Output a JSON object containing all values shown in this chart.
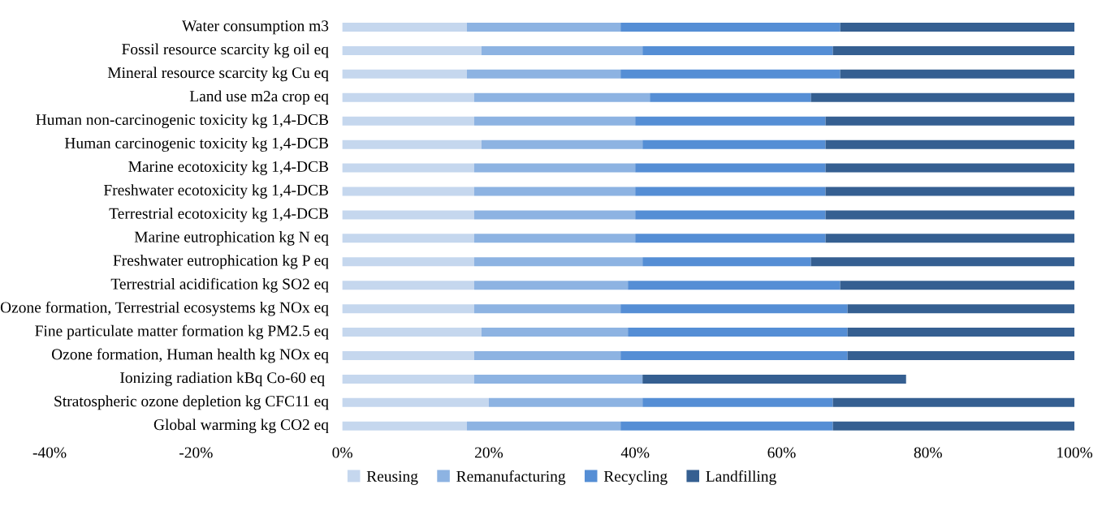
{
  "chart_data": {
    "type": "bar",
    "orientation": "horizontal",
    "stacked": true,
    "categories": [
      "Water consumption m3",
      "Fossil resource scarcity kg oil eq",
      "Mineral resource scarcity kg Cu eq",
      "Land use m2a crop eq",
      "Human non-carcinogenic toxicity kg 1,4-DCB",
      "Human carcinogenic toxicity kg 1,4-DCB",
      "Marine ecotoxicity kg 1,4-DCB",
      "Freshwater ecotoxicity kg 1,4-DCB",
      "Terrestrial ecotoxicity kg 1,4-DCB",
      "Marine eutrophication kg N eq",
      "Freshwater eutrophication kg P eq",
      "Terrestrial acidification kg SO2 eq",
      "Ozone formation, Terrestrial ecosystems kg NOx eq",
      "Fine particulate matter formation kg PM2.5 eq",
      "Ozone formation, Human health kg NOx eq",
      "Ionizing radiation kBq Co-60 eq ",
      "Stratospheric ozone depletion kg CFC11 eq",
      "Global warming kg CO2 eq"
    ],
    "series": [
      {
        "name": "Reusing",
        "color": "#c5d7ee",
        "values": [
          17,
          19,
          17,
          18,
          18,
          19,
          18,
          18,
          18,
          18,
          18,
          18,
          18,
          19,
          18,
          18,
          20,
          17
        ]
      },
      {
        "name": "Remanufacturing",
        "color": "#8db3e2",
        "values": [
          21,
          22,
          21,
          24,
          22,
          22,
          22,
          22,
          22,
          22,
          23,
          21,
          20,
          20,
          20,
          23,
          21,
          21
        ]
      },
      {
        "name": "Recycling",
        "color": "#558ed5",
        "values": [
          30,
          26,
          30,
          22,
          26,
          25,
          26,
          26,
          26,
          26,
          23,
          29,
          31,
          30,
          31,
          0,
          26,
          29
        ]
      },
      {
        "name": "Landfilling",
        "color": "#355f91",
        "values": [
          32,
          33,
          32,
          36,
          34,
          34,
          34,
          34,
          34,
          34,
          36,
          32,
          31,
          31,
          31,
          36,
          33,
          33
        ]
      }
    ],
    "xlim": [
      -40,
      100
    ],
    "xticks": [
      {
        "value": -40,
        "label": "-40%"
      },
      {
        "value": -20,
        "label": "-20%"
      },
      {
        "value": 0,
        "label": "0%"
      },
      {
        "value": 20,
        "label": "20%"
      },
      {
        "value": 40,
        "label": "40%"
      },
      {
        "value": 60,
        "label": "60%"
      },
      {
        "value": 80,
        "label": "80%"
      },
      {
        "value": 100,
        "label": "100%"
      }
    ],
    "grid": false,
    "legend": "bottom"
  }
}
